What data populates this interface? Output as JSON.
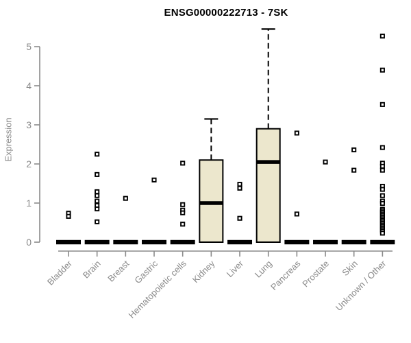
{
  "chart_data": {
    "type": "boxplot",
    "title": "ENSG00000222713 - 7SK",
    "ylabel": "Expression",
    "xlabel": "",
    "ylim": [
      0,
      5.5
    ],
    "grid": false,
    "yticks": [
      "0",
      "1",
      "2",
      "3",
      "4",
      "5"
    ],
    "ytick_values": [
      0,
      1,
      2,
      3,
      4,
      5
    ],
    "categories": [
      "Bladder",
      "Brain",
      "Breast",
      "Gastric",
      "Hematopoietic cells",
      "Kidney",
      "Liver",
      "Lung",
      "Pancreas",
      "Prostate",
      "Skin",
      "Unknown / Other"
    ],
    "boxes": [
      {
        "category": "Bladder",
        "q1": 0,
        "median": 0,
        "q3": 0,
        "whisker_low": 0,
        "whisker_high": 0,
        "collapsed": true
      },
      {
        "category": "Brain",
        "q1": 0,
        "median": 0,
        "q3": 0,
        "whisker_low": 0,
        "whisker_high": 0,
        "collapsed": true
      },
      {
        "category": "Breast",
        "q1": 0,
        "median": 0,
        "q3": 0,
        "whisker_low": 0,
        "whisker_high": 0,
        "collapsed": true
      },
      {
        "category": "Gastric",
        "q1": 0,
        "median": 0,
        "q3": 0,
        "whisker_low": 0,
        "whisker_high": 0,
        "collapsed": true
      },
      {
        "category": "Hematopoietic cells",
        "q1": 0,
        "median": 0,
        "q3": 0,
        "whisker_low": 0,
        "whisker_high": 0,
        "collapsed": true
      },
      {
        "category": "Kidney",
        "q1": 0,
        "median": 1.0,
        "q3": 2.1,
        "whisker_low": 0,
        "whisker_high": 3.15,
        "collapsed": false
      },
      {
        "category": "Liver",
        "q1": 0,
        "median": 0,
        "q3": 0,
        "whisker_low": 0,
        "whisker_high": 0,
        "collapsed": true
      },
      {
        "category": "Lung",
        "q1": 0,
        "median": 2.05,
        "q3": 2.9,
        "whisker_low": 0,
        "whisker_high": 5.45,
        "collapsed": false
      },
      {
        "category": "Pancreas",
        "q1": 0,
        "median": 0,
        "q3": 0,
        "whisker_low": 0,
        "whisker_high": 0,
        "collapsed": true
      },
      {
        "category": "Prostate",
        "q1": 0,
        "median": 0,
        "q3": 0,
        "whisker_low": 0,
        "whisker_high": 0,
        "collapsed": true
      },
      {
        "category": "Skin",
        "q1": 0,
        "median": 0,
        "q3": 0,
        "whisker_low": 0,
        "whisker_high": 0,
        "collapsed": true
      },
      {
        "category": "Unknown / Other",
        "q1": 0,
        "median": 0,
        "q3": 0,
        "whisker_low": 0,
        "whisker_high": 0,
        "collapsed": true
      }
    ],
    "points": [
      {
        "category": "Bladder",
        "values": [
          0.74,
          0.66
        ]
      },
      {
        "category": "Brain",
        "values": [
          2.25,
          1.73,
          1.29,
          1.19,
          1.05,
          0.94,
          0.85,
          0.52
        ]
      },
      {
        "category": "Breast",
        "values": [
          1.12
        ]
      },
      {
        "category": "Gastric",
        "values": [
          1.59
        ]
      },
      {
        "category": "Hematopoietic cells",
        "values": [
          2.02,
          0.96,
          0.82,
          0.75,
          0.46
        ]
      },
      {
        "category": "Kidney",
        "values": []
      },
      {
        "category": "Liver",
        "values": [
          1.48,
          1.38,
          0.61
        ]
      },
      {
        "category": "Lung",
        "values": []
      },
      {
        "category": "Pancreas",
        "values": [
          2.79,
          0.72
        ]
      },
      {
        "category": "Prostate",
        "values": [
          2.05
        ]
      },
      {
        "category": "Skin",
        "values": [
          2.36,
          1.84
        ]
      },
      {
        "category": "Unknown / Other",
        "values": [
          5.27,
          4.4,
          3.52,
          2.42,
          2.02,
          1.94,
          1.84,
          1.43,
          1.35,
          1.19,
          1.05,
          0.99,
          0.84,
          0.8,
          0.76,
          0.72,
          0.68,
          0.64,
          0.6,
          0.56,
          0.52,
          0.48,
          0.44,
          0.4,
          0.36,
          0.32,
          0.28,
          0.23
        ]
      }
    ],
    "colors": {
      "box_fill": "#ece7cd",
      "box_stroke": "#000000",
      "median": "#000000",
      "whisker": "#000000",
      "point_stroke": "#000000",
      "point_fill": "#ffffff",
      "axis": "#8a8a8a",
      "tick_label": "#8a8a8a",
      "title": "#000000",
      "background": "#ffffff"
    },
    "legend": null
  }
}
